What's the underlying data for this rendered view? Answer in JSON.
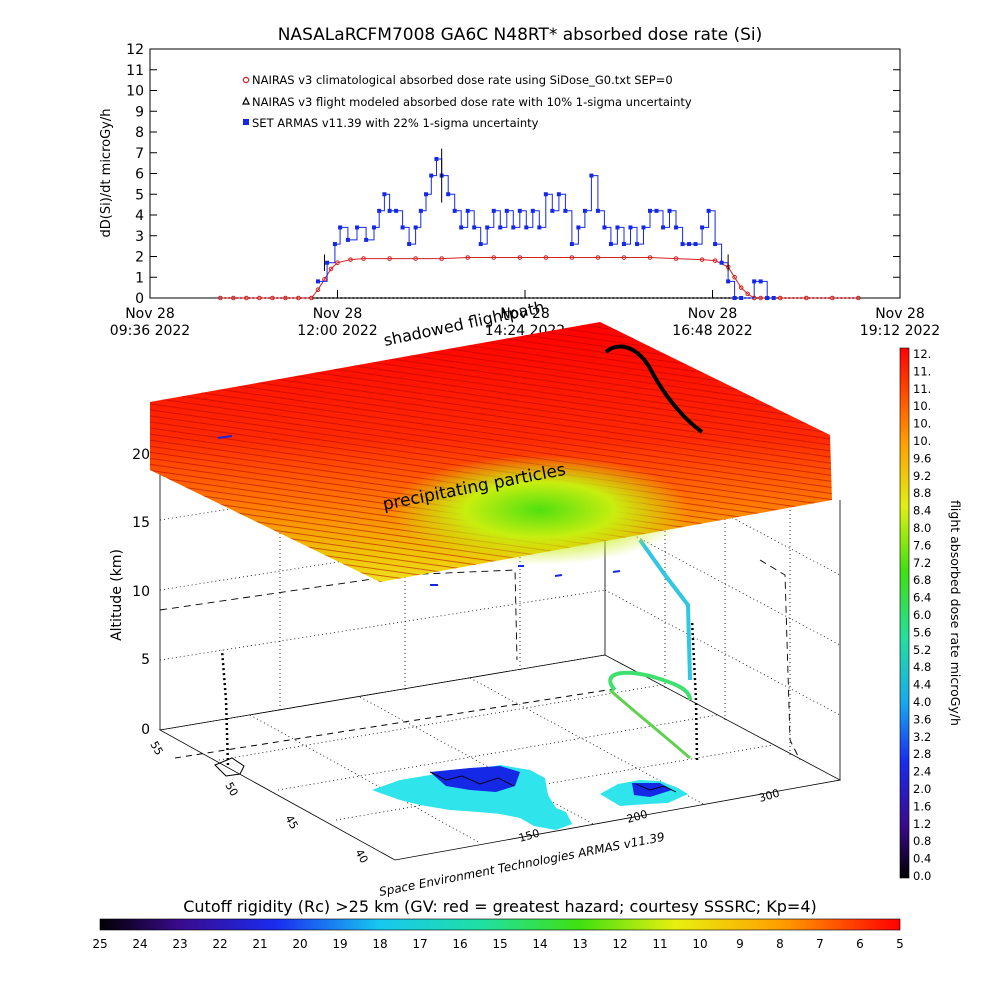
{
  "title": "NASALaRCFM7008   GA6C N48RT* absorbed dose rate (Si)",
  "chart_data": [
    {
      "type": "line",
      "ylabel": "dD(Si)/dt microGy/h",
      "ylim": [
        0,
        12
      ],
      "yticks": [
        "0",
        "1",
        "2",
        "3",
        "4",
        "5",
        "6",
        "7",
        "8",
        "9",
        "10",
        "11",
        "12"
      ],
      "xlim": [
        576,
        1152
      ],
      "xticks": [
        {
          "t": 576,
          "line1": "Nov 28",
          "line2": "09:36 2022"
        },
        {
          "t": 720,
          "line1": "Nov 28",
          "line2": "12:00 2022"
        },
        {
          "t": 864,
          "line1": "Nov 28",
          "line2": "14:24 2022"
        },
        {
          "t": 1008,
          "line1": "Nov 28",
          "line2": "16:48 2022"
        },
        {
          "t": 1152,
          "line1": "Nov 28",
          "line2": "19:12 2022"
        }
      ],
      "legend_position": "top-left",
      "series": [
        {
          "name": "NAIRAS v3 climatological absorbed dose rate using SiDose_G0.txt SEP=0",
          "color": "#d42020",
          "marker": "circle",
          "x": [
            630,
            640,
            650,
            660,
            670,
            680,
            690,
            700,
            705,
            710,
            715,
            720,
            730,
            740,
            760,
            780,
            800,
            820,
            840,
            860,
            880,
            900,
            920,
            940,
            960,
            980,
            1000,
            1010,
            1020,
            1025,
            1030,
            1035,
            1040,
            1045,
            1050,
            1060,
            1080,
            1100,
            1120
          ],
          "y": [
            0,
            0,
            0,
            0,
            0,
            0,
            0,
            0,
            0.4,
            0.9,
            1.4,
            1.7,
            1.85,
            1.9,
            1.9,
            1.9,
            1.9,
            1.95,
            1.95,
            1.95,
            1.95,
            1.95,
            1.95,
            1.95,
            1.95,
            1.9,
            1.85,
            1.8,
            1.5,
            1.0,
            0.5,
            0.2,
            0,
            0,
            0,
            0,
            0,
            0,
            0
          ]
        },
        {
          "name": "NAIRAS v3 flight modeled absorbed dose rate with 10% 1-sigma uncertainty",
          "color": "#000000",
          "marker": "triangle",
          "x": [
            630,
            1120
          ],
          "y": [
            0,
            0
          ]
        },
        {
          "name": "SET ARMAS v11.39 with 22% 1-sigma uncertainty",
          "color": "#1428e6",
          "marker": "square",
          "x": [
            705,
            712,
            718,
            722,
            728,
            735,
            742,
            748,
            752,
            756,
            760,
            765,
            770,
            775,
            780,
            784,
            788,
            792,
            796,
            800,
            805,
            810,
            815,
            820,
            825,
            830,
            835,
            840,
            845,
            850,
            855,
            860,
            865,
            870,
            875,
            880,
            885,
            890,
            895,
            900,
            905,
            910,
            915,
            920,
            925,
            930,
            935,
            940,
            945,
            950,
            955,
            960,
            965,
            970,
            975,
            980,
            985,
            990,
            995,
            1000,
            1005,
            1010,
            1015,
            1020,
            1025,
            1030,
            1040,
            1045,
            1050,
            1055
          ],
          "y": [
            0.8,
            1.7,
            2.6,
            3.4,
            2.8,
            3.4,
            2.8,
            3.4,
            4.2,
            5.0,
            4.2,
            4.2,
            3.4,
            2.6,
            3.4,
            4.2,
            5.0,
            5.9,
            6.7,
            5.9,
            5.0,
            4.2,
            3.4,
            4.2,
            3.4,
            2.6,
            3.4,
            4.2,
            3.4,
            4.2,
            3.4,
            4.2,
            3.4,
            4.2,
            3.4,
            5.0,
            4.2,
            5.0,
            4.2,
            2.6,
            3.4,
            4.2,
            5.9,
            4.2,
            3.4,
            2.6,
            3.4,
            2.6,
            3.4,
            2.6,
            3.4,
            4.2,
            4.2,
            3.4,
            4.2,
            3.4,
            2.6,
            2.6,
            2.6,
            3.4,
            4.2,
            2.6,
            1.7,
            0.8,
            0,
            0,
            0.8,
            0.8,
            0,
            0
          ]
        }
      ]
    },
    {
      "type": "scatter",
      "ylabel": "Altitude (km)",
      "zticks": [
        "0",
        "5",
        "10",
        "15",
        "20"
      ],
      "lat_ticks": [
        "40",
        "45",
        "50",
        "55"
      ],
      "lon_ticks": [
        "150",
        "200",
        "300"
      ],
      "annotations": [
        "shadowed flightpath",
        "precipitating particles"
      ]
    }
  ],
  "dose_colorbar": {
    "label": "flight absorbed dose rate microGy/h",
    "ticks": [
      "12.",
      "11.",
      "11.",
      "10.",
      "10.",
      "10.",
      "9.6",
      "9.2",
      "8.8",
      "8.4",
      "8.0",
      "7.6",
      "7.2",
      "6.8",
      "6.4",
      "6.0",
      "5.6",
      "5.2",
      "4.8",
      "4.4",
      "4.0",
      "3.6",
      "3.2",
      "2.8",
      "2.4",
      "2.0",
      "1.6",
      "1.2",
      "0.8",
      "0.4",
      "0.0"
    ]
  },
  "rigidity_colorbar": {
    "label": "Cutoff rigidity (Rc) >25 km (GV: red = greatest hazard; courtesy SSSRC; Kp=4)",
    "ticks": [
      "25",
      "24",
      "23",
      "22",
      "21",
      "20",
      "19",
      "18",
      "17",
      "16",
      "15",
      "14",
      "13",
      "12",
      "11",
      "10",
      "9",
      "8",
      "7",
      "6",
      "5"
    ]
  },
  "credit": "Space Environment Technologies ARMAS v11.39"
}
